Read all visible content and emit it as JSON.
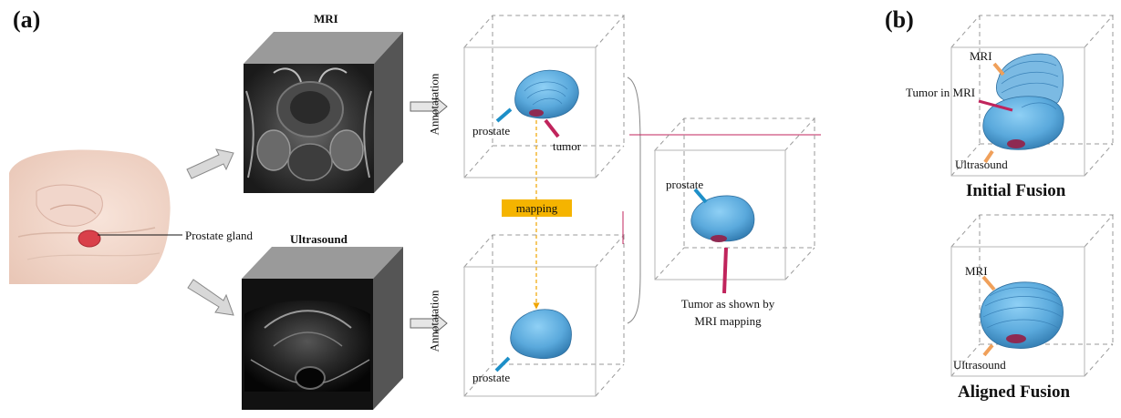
{
  "panel_a": {
    "label": "(a)",
    "mri_heading": "MRI",
    "ultrasound_heading": "Ultrasound",
    "prostate_gland_label": "Prostate gland",
    "annotation_top": "Annotatation",
    "annotation_bottom": "Annotatation",
    "prostate_top": "prostate",
    "tumor_top": "tumor",
    "mapping": "mapping",
    "prostate_bottom": "prostate",
    "prostate_result": "prostate",
    "tumor_result_line1": "Tumor as shown by",
    "tumor_result_line2": "MRI mapping"
  },
  "panel_b": {
    "label": "(b)",
    "initial": {
      "mri": "MRI",
      "tumor": "Tumor in MRI",
      "ultrasound": "Ultrasound",
      "title": "Initial Fusion"
    },
    "aligned": {
      "mri": "MRI",
      "ultrasound": "Ultrasound",
      "title": "Aligned Fusion"
    }
  },
  "colors": {
    "prostate": "#5aa9dc",
    "prostate_outline": "#2f6f9f",
    "tumor": "#8e2a52",
    "pointer_blue": "#1d8fc8",
    "pointer_red": "#c0245c",
    "pointer_orange": "#f0a05a",
    "mapping_box": "#f5b400",
    "mapping_line": "#f0a500",
    "cube_side": "#555555",
    "cube_top": "#9a9a9a",
    "dashed": "#9a9a9a",
    "bracket_red": "#c0245c"
  }
}
